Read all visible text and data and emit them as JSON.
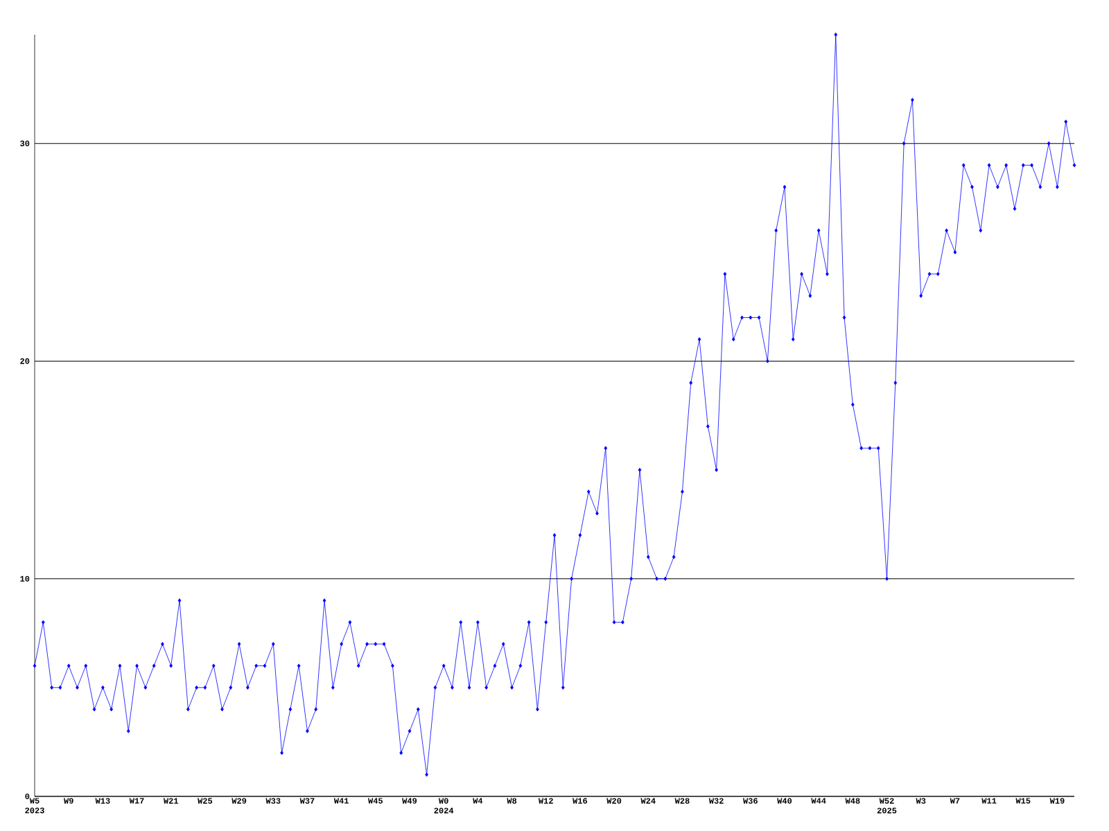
{
  "chart_data": {
    "type": "line",
    "categories": [
      "W5 2023",
      null,
      null,
      null,
      "W9",
      null,
      null,
      null,
      "W13",
      null,
      null,
      null,
      "W17",
      null,
      null,
      null,
      "W21",
      null,
      null,
      null,
      "W25",
      null,
      null,
      null,
      "W29",
      null,
      null,
      null,
      "W33",
      null,
      null,
      null,
      "W37",
      null,
      null,
      null,
      "W41",
      null,
      null,
      null,
      "W45",
      null,
      null,
      null,
      "W49",
      null,
      null,
      null,
      "W0 2024",
      null,
      null,
      null,
      "W4",
      null,
      null,
      null,
      "W8",
      null,
      null,
      null,
      "W12",
      null,
      null,
      null,
      "W16",
      null,
      null,
      null,
      "W20",
      null,
      null,
      null,
      "W24",
      null,
      null,
      null,
      "W28",
      null,
      null,
      null,
      "W32",
      null,
      null,
      null,
      "W36",
      null,
      null,
      null,
      "W40",
      null,
      null,
      null,
      "W44",
      null,
      null,
      null,
      "W48",
      null,
      null,
      null,
      "W52 2025",
      null,
      null,
      null,
      "W3",
      null,
      null,
      null,
      "W7",
      null,
      null,
      null,
      "W11",
      null,
      null,
      null,
      "W15",
      null,
      null,
      null,
      "W19",
      null,
      null
    ],
    "series": [
      {
        "color": "#0000ff",
        "values": [
          6,
          8,
          5,
          5,
          6,
          5,
          6,
          4,
          5,
          4,
          6,
          3,
          6,
          5,
          6,
          7,
          6,
          9,
          4,
          5,
          5,
          6,
          4,
          5,
          7,
          5,
          6,
          6,
          7,
          2,
          4,
          6,
          3,
          4,
          9,
          5,
          7,
          8,
          6,
          7,
          7,
          7,
          6,
          2,
          3,
          4,
          1,
          5,
          6,
          5,
          8,
          5,
          8,
          5,
          6,
          7,
          5,
          6,
          8,
          4,
          8,
          12,
          5,
          10,
          12,
          14,
          13,
          16,
          8,
          8,
          10,
          15,
          11,
          10,
          10,
          11,
          14,
          19,
          21,
          17,
          15,
          24,
          21,
          22,
          22,
          22,
          20,
          26,
          28,
          21,
          24,
          23,
          26,
          24,
          35,
          22,
          18,
          16,
          16,
          16,
          10,
          19,
          30,
          32,
          23,
          24,
          24,
          26,
          25,
          29,
          28,
          26,
          29,
          28,
          29,
          27,
          29,
          29,
          28,
          30,
          28,
          31,
          29
        ]
      }
    ],
    "ylim": [
      0,
      35
    ],
    "yticks": [
      0,
      10,
      20,
      30
    ],
    "grid": "y",
    "marker": "diamond",
    "line_style": "solid"
  }
}
